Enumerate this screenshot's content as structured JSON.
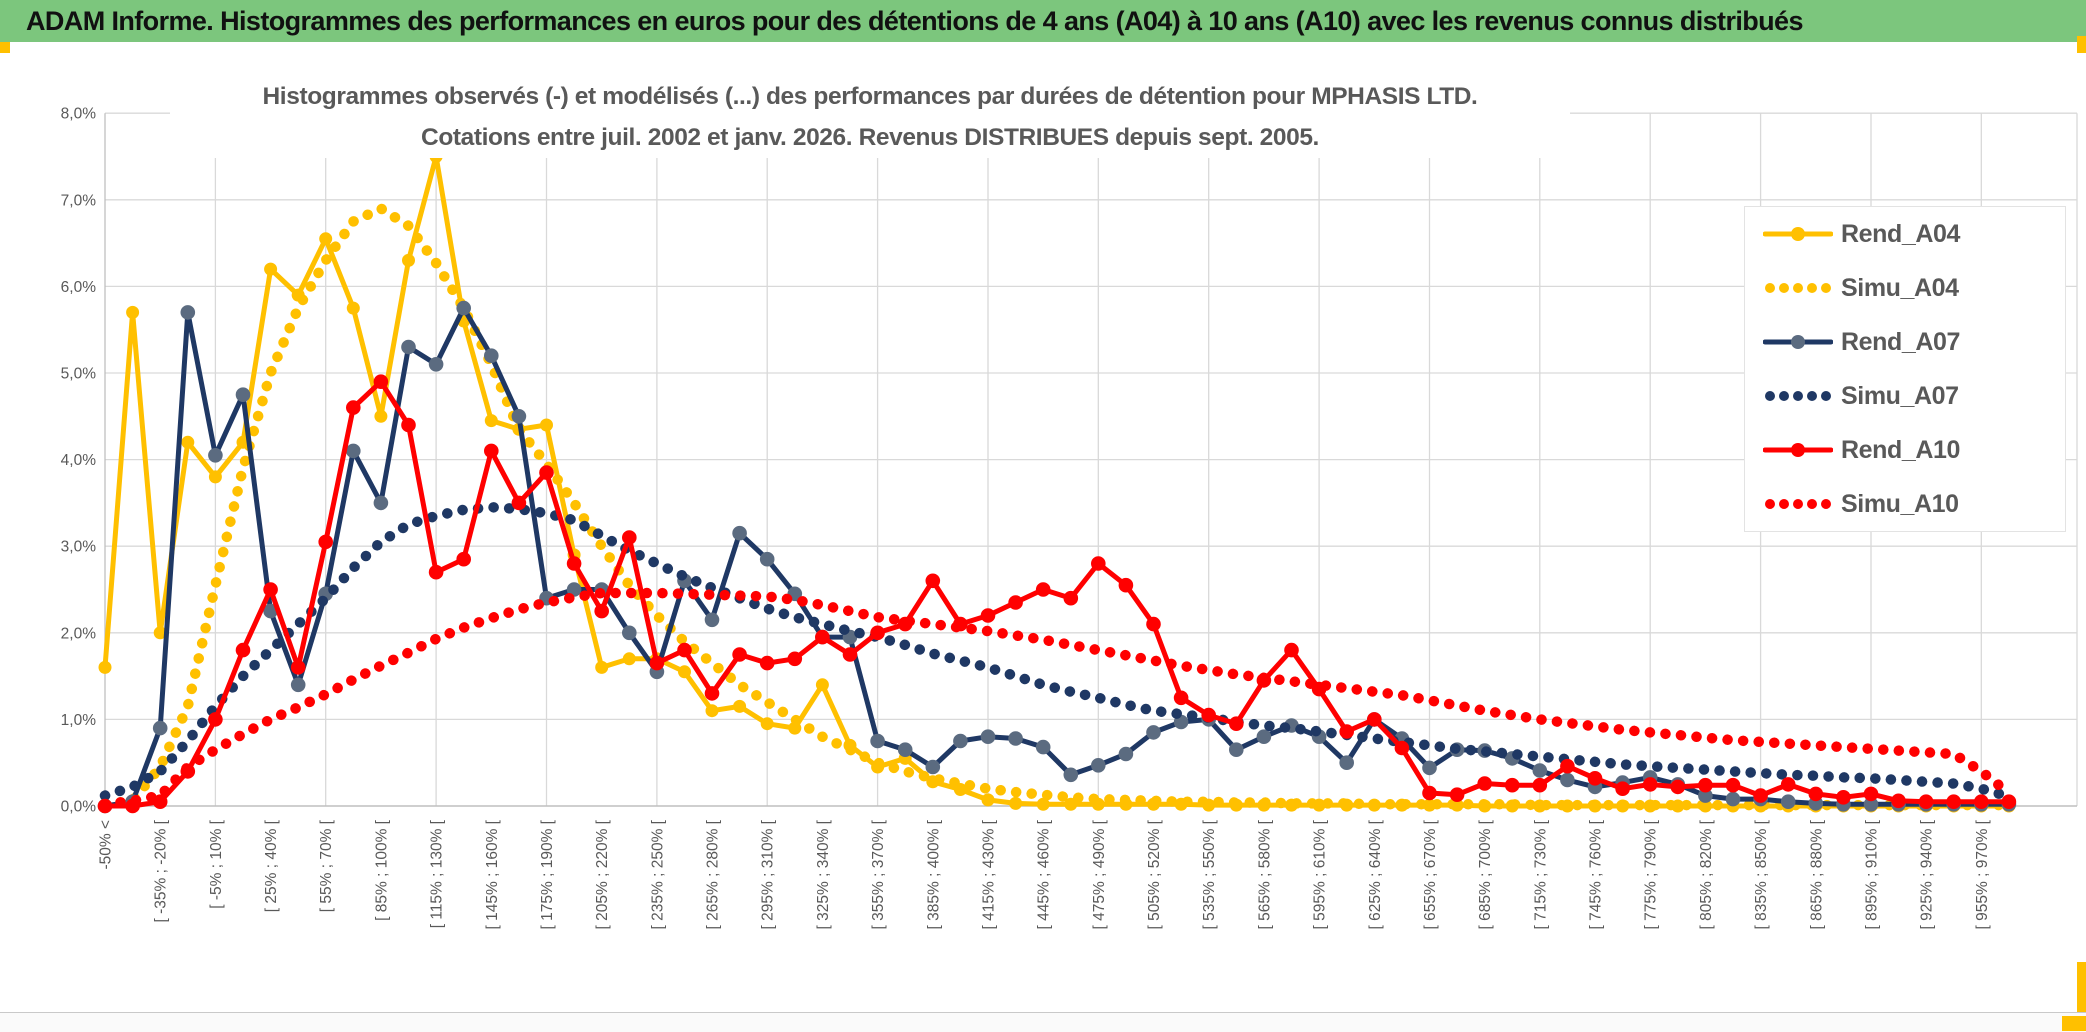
{
  "page": {
    "header": {
      "title": "ADAM Informe. Histogrammes des performances en euros pour des détentions de 4 ans (A04) à 10 ans (A10) avec les revenus connus distribués"
    },
    "accent_color": "#ffc000",
    "header_color": "#7cc67d"
  },
  "chart": {
    "title_line1": "Histogrammes observés (-) et modélisés (...) des performances par durées de détention pour MPHASIS LTD.",
    "title_line2": "Cotations entre juil. 2002 et janv. 2026. Revenus DISTRIBUES depuis sept. 2005.",
    "y_ticks": [
      "0,0%",
      "1,0%",
      "2,0%",
      "3,0%",
      "4,0%",
      "5,0%",
      "6,0%",
      "7,0%",
      "8,0%"
    ],
    "legend": [
      {
        "label": "Rend_A04",
        "color": "#FFC000",
        "marker": "#FFC000",
        "style": "solid"
      },
      {
        "label": "Simu_A04",
        "color": "#FFC000",
        "marker": "#FFC000",
        "style": "dotted"
      },
      {
        "label": "Rend_A07",
        "color": "#1F3864",
        "marker": "#5B6B80",
        "style": "solid"
      },
      {
        "label": "Simu_A07",
        "color": "#1F3864",
        "marker": "#1F3864",
        "style": "dotted"
      },
      {
        "label": "Rend_A10",
        "color": "#FF0000",
        "marker": "#FF0000",
        "style": "solid"
      },
      {
        "label": "Simu_A10",
        "color": "#FF0000",
        "marker": "#FF0000",
        "style": "dotted"
      }
    ],
    "chart_data": {
      "type": "line",
      "title": "Histogrammes observés (-) et modélisés (...) des performances par durées de détention pour MPHASIS LTD. Cotations entre juil. 2002 et janv. 2026. Revenus DISTRIBUES depuis sept. 2005.",
      "ylabel": "",
      "xlabel": "",
      "ylim": [
        0,
        8
      ],
      "grid": true,
      "legend_position": "right-inside",
      "x_bins_note": "70 bins of 15% width; every second bin labeled",
      "x_labels_shown": [
        "-50% <",
        "[ -35% ; -20% [",
        "[ -5% ; 10% [",
        "[ 25% ; 40% [",
        "[ 55% ; 70% [",
        "[ 85% ; 100% [",
        "[ 115% ; 130% [",
        "[ 145% ; 160% [",
        "[ 175% ; 190% [",
        "[ 205% ; 220% [",
        "[ 235% ; 250% [",
        "[ 265% ; 280% [",
        "[ 295% ; 310% [",
        "[ 325% ; 340% [",
        "[ 355% ; 370% [",
        "[ 385% ; 400% [",
        "[ 415% ; 430% [",
        "[ 445% ; 460% [",
        "[ 475% ; 490% [",
        "[ 505% ; 520% [",
        "[ 535% ; 550% [",
        "[ 565% ; 580% [",
        "[ 595% ; 610% [",
        "[ 625% ; 640% [",
        "[ 655% ; 670% [",
        "[ 685% ; 700% [",
        "[ 715% ; 730% [",
        "[ 745% ; 760% [",
        "[ 775% ; 790% [",
        "[ 805% ; 820% [",
        "[ 835% ; 850% [",
        "[ 865% ; 880% [",
        "[ 895% ; 910% [",
        "[ 925% ; 940% [",
        "[ 955% ; 970% ["
      ],
      "series": [
        {
          "name": "Rend_A04",
          "style": "solid",
          "color": "#FFC000",
          "marker_color": "#FFC000",
          "values": [
            1.6,
            5.7,
            2.0,
            4.2,
            3.8,
            4.2,
            6.2,
            5.9,
            6.55,
            5.75,
            4.5,
            6.3,
            7.5,
            5.6,
            4.45,
            4.35,
            4.4,
            2.9,
            1.6,
            1.7,
            1.7,
            1.55,
            1.1,
            1.15,
            0.95,
            0.9,
            1.4,
            0.7,
            0.45,
            0.55,
            0.28,
            0.19,
            0.07,
            0.03,
            0.02,
            0.02,
            0.02,
            0.02,
            0.02,
            0.02,
            0.01,
            0.01,
            0.01,
            0.01,
            0.01,
            0.01,
            0.01,
            0.01,
            0.01,
            0.01,
            0.0,
            0.0,
            0.0,
            0.0,
            0.0,
            0.0,
            0.0,
            0.0,
            0.0,
            0.0,
            0.0,
            0.0,
            0.0,
            0.0,
            0.0,
            0.0,
            0.0,
            0.0,
            0.0,
            0.0
          ]
        },
        {
          "name": "Simu_A04",
          "style": "dotted",
          "color": "#FFC000",
          "values": [
            0.02,
            0.06,
            0.45,
            1.15,
            2.55,
            3.9,
            5.0,
            5.75,
            6.3,
            6.75,
            6.9,
            6.7,
            6.27,
            5.75,
            5.1,
            4.35,
            3.95,
            3.5,
            3.0,
            2.55,
            2.2,
            1.9,
            1.65,
            1.4,
            1.2,
            1.0,
            0.8,
            0.65,
            0.5,
            0.4,
            0.32,
            0.26,
            0.2,
            0.16,
            0.13,
            0.1,
            0.08,
            0.07,
            0.06,
            0.05,
            0.05,
            0.04,
            0.04,
            0.03,
            0.03,
            0.03,
            0.02,
            0.02,
            0.02,
            0.02,
            0.02,
            0.02,
            0.01,
            0.01,
            0.01,
            0.01,
            0.01,
            0.01,
            0.01,
            0.01,
            0.01,
            0.01,
            0.01,
            0.01,
            0.01,
            0.01,
            0.01,
            0.01,
            0.01,
            0.01
          ]
        },
        {
          "name": "Rend_A07",
          "style": "solid",
          "color": "#1F3864",
          "marker_color": "#5B6B80",
          "values": [
            0.0,
            0.05,
            0.9,
            5.7,
            4.05,
            4.75,
            2.25,
            1.4,
            2.45,
            4.1,
            3.5,
            5.3,
            5.1,
            5.75,
            5.2,
            4.5,
            2.4,
            2.5,
            2.5,
            2.0,
            1.55,
            2.6,
            2.15,
            3.15,
            2.85,
            2.45,
            1.95,
            1.95,
            0.75,
            0.65,
            0.45,
            0.75,
            0.8,
            0.78,
            0.68,
            0.36,
            0.47,
            0.6,
            0.85,
            0.97,
            1.0,
            0.65,
            0.8,
            0.93,
            0.8,
            0.5,
            1.0,
            0.78,
            0.44,
            0.65,
            0.64,
            0.55,
            0.41,
            0.3,
            0.22,
            0.27,
            0.33,
            0.25,
            0.12,
            0.08,
            0.08,
            0.05,
            0.03,
            0.02,
            0.02,
            0.02,
            0.02,
            0.02,
            0.02,
            0.02
          ]
        },
        {
          "name": "Simu_A07",
          "style": "dotted",
          "color": "#1F3864",
          "values": [
            0.12,
            0.22,
            0.4,
            0.75,
            1.15,
            1.5,
            1.8,
            2.1,
            2.4,
            2.75,
            3.05,
            3.25,
            3.35,
            3.42,
            3.45,
            3.43,
            3.38,
            3.3,
            3.12,
            2.95,
            2.8,
            2.65,
            2.52,
            2.4,
            2.28,
            2.18,
            2.1,
            2.02,
            1.95,
            1.86,
            1.76,
            1.68,
            1.6,
            1.5,
            1.4,
            1.32,
            1.25,
            1.17,
            1.1,
            1.06,
            1.02,
            0.97,
            0.93,
            0.9,
            0.86,
            0.82,
            0.78,
            0.74,
            0.7,
            0.66,
            0.63,
            0.6,
            0.57,
            0.54,
            0.51,
            0.48,
            0.46,
            0.44,
            0.42,
            0.4,
            0.38,
            0.36,
            0.35,
            0.33,
            0.32,
            0.3,
            0.28,
            0.26,
            0.2,
            0.11
          ]
        },
        {
          "name": "Rend_A10",
          "style": "solid",
          "color": "#FF0000",
          "marker_color": "#FF0000",
          "values": [
            0.0,
            0.0,
            0.05,
            0.4,
            1.0,
            1.8,
            2.5,
            1.6,
            3.05,
            4.6,
            4.9,
            4.4,
            2.7,
            2.85,
            4.1,
            3.5,
            3.85,
            2.8,
            2.25,
            3.1,
            1.65,
            1.8,
            1.3,
            1.75,
            1.65,
            1.7,
            1.95,
            1.75,
            2.0,
            2.1,
            2.6,
            2.1,
            2.2,
            2.35,
            2.5,
            2.4,
            2.8,
            2.55,
            2.1,
            1.25,
            1.05,
            0.95,
            1.45,
            1.8,
            1.35,
            0.86,
            1.0,
            0.67,
            0.15,
            0.13,
            0.26,
            0.24,
            0.24,
            0.46,
            0.32,
            0.2,
            0.25,
            0.22,
            0.24,
            0.24,
            0.12,
            0.25,
            0.14,
            0.1,
            0.14,
            0.06,
            0.05,
            0.05,
            0.05,
            0.05
          ]
        },
        {
          "name": "Simu_A10",
          "style": "dotted",
          "color": "#FF0000",
          "values": [
            0.02,
            0.06,
            0.12,
            0.45,
            0.65,
            0.83,
            1.0,
            1.14,
            1.29,
            1.46,
            1.62,
            1.77,
            1.93,
            2.06,
            2.17,
            2.27,
            2.35,
            2.41,
            2.46,
            2.46,
            2.46,
            2.45,
            2.44,
            2.43,
            2.42,
            2.38,
            2.32,
            2.25,
            2.18,
            2.14,
            2.1,
            2.06,
            2.02,
            1.97,
            1.92,
            1.86,
            1.8,
            1.74,
            1.68,
            1.62,
            1.57,
            1.52,
            1.48,
            1.44,
            1.4,
            1.36,
            1.32,
            1.28,
            1.22,
            1.16,
            1.1,
            1.05,
            1.0,
            0.96,
            0.92,
            0.88,
            0.85,
            0.82,
            0.79,
            0.76,
            0.74,
            0.72,
            0.7,
            0.68,
            0.66,
            0.64,
            0.62,
            0.6,
            0.4,
            0.15
          ]
        }
      ]
    }
  }
}
